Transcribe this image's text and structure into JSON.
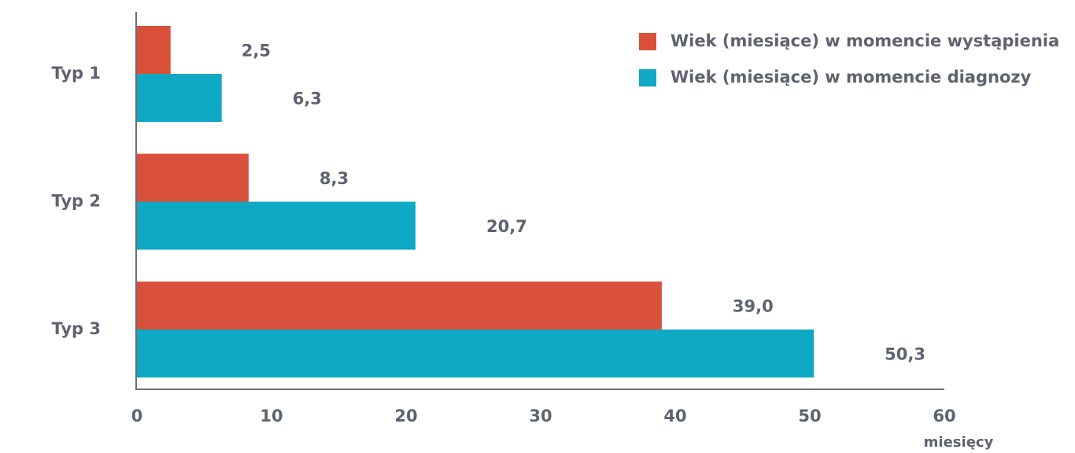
{
  "chart_data": {
    "type": "bar",
    "orientation": "horizontal",
    "categories": [
      "Typ 1",
      "Typ 2",
      "Typ 3"
    ],
    "series": [
      {
        "name": "Wiek (miesiące) w momencie wystąpienia",
        "color": "#d9503a",
        "values": [
          2.5,
          8.3,
          39.0
        ],
        "value_labels": [
          "2,5",
          "8,3",
          "39,0"
        ]
      },
      {
        "name": "Wiek (miesiące) w momencie diagnozy",
        "color": "#0fa9c6",
        "values": [
          6.3,
          20.7,
          50.3
        ],
        "value_labels": [
          "6,3",
          "20,7",
          "50,3"
        ]
      }
    ],
    "xlim": [
      0,
      60
    ],
    "xticks": [
      0,
      10,
      20,
      30,
      40,
      50,
      60
    ],
    "xlabel": "miesięcy",
    "legend": "upper right"
  }
}
